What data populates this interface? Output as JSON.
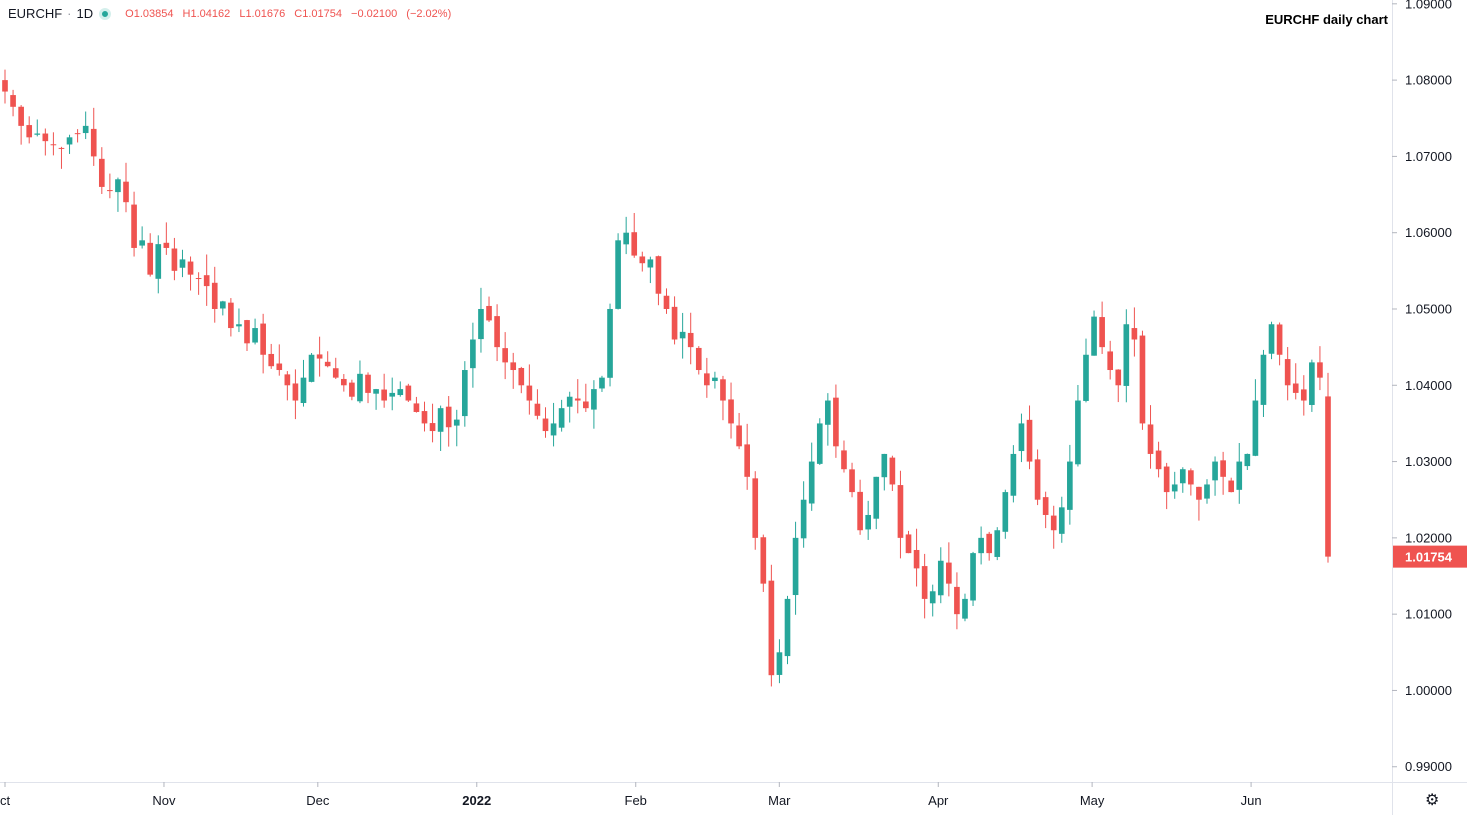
{
  "header": {
    "symbol": "EURCHF",
    "interval": "1D",
    "open_label": "O",
    "open": "1.03854",
    "high_label": "H",
    "high": "1.04162",
    "low_label": "L",
    "low": "1.01676",
    "close_label": "C",
    "close": "1.01754",
    "change": "−0.02100",
    "change_pct": "(−2.02%)",
    "status_color": "#26a69a"
  },
  "title": "EURCHF daily chart",
  "last_price": "1.01754",
  "colors": {
    "up": "#26a69a",
    "down": "#ef5350",
    "axis": "#131722",
    "border": "#e0e3eb"
  },
  "settings_icon": "gear-icon",
  "chart_data": {
    "type": "candlestick",
    "title": "EURCHF daily chart",
    "ylim": [
      0.988,
      1.0905
    ],
    "y_ticks": [
      "1.09000",
      "1.08000",
      "1.07000",
      "1.06000",
      "1.05000",
      "1.04000",
      "1.03000",
      "1.02000",
      "1.01000",
      "1.00000",
      "0.99000"
    ],
    "x_ticks": [
      {
        "label": "ct",
        "date": "2021-10-01",
        "bold": false
      },
      {
        "label": "Nov",
        "date": "2021-11-01",
        "bold": false
      },
      {
        "label": "Dec",
        "date": "2021-12-01",
        "bold": false
      },
      {
        "label": "2022",
        "date": "2022-01-01",
        "bold": true
      },
      {
        "label": "Feb",
        "date": "2022-02-01",
        "bold": false
      },
      {
        "label": "Mar",
        "date": "2022-03-01",
        "bold": false
      },
      {
        "label": "Apr",
        "date": "2022-04-01",
        "bold": false
      },
      {
        "label": "May",
        "date": "2022-05-01",
        "bold": false
      },
      {
        "label": "Jun",
        "date": "2022-06-01",
        "bold": false
      }
    ],
    "x_start": "2021-10-01",
    "x_end": "2022-06-16",
    "closes": [
      1.0785,
      1.0765,
      1.074,
      1.0725,
      1.073,
      1.072,
      1.0715,
      1.071,
      1.0725,
      1.073,
      1.074,
      1.07,
      1.066,
      1.0655,
      1.067,
      1.064,
      1.058,
      1.059,
      1.0545,
      1.0585,
      1.058,
      1.055,
      1.0565,
      1.0545,
      1.054,
      1.053,
      1.05,
      1.051,
      1.0475,
      1.048,
      1.0455,
      1.0475,
      1.044,
      1.0425,
      1.042,
      1.04,
      1.038,
      1.041,
      1.044,
      1.0435,
      1.0425,
      1.041,
      1.04,
      1.0385,
      1.0415,
      1.039,
      1.0395,
      1.038,
      1.039,
      1.0395,
      1.038,
      1.0365,
      1.035,
      1.034,
      1.037,
      1.0345,
      1.0355,
      1.042,
      1.046,
      1.05,
      1.0485,
      1.045,
      1.043,
      1.042,
      1.04,
      1.038,
      1.036,
      1.034,
      1.035,
      1.037,
      1.0385,
      1.038,
      1.037,
      1.0395,
      1.041,
      1.05,
      1.059,
      1.06,
      1.057,
      1.056,
      1.0565,
      1.052,
      1.05,
      1.046,
      1.047,
      1.045,
      1.042,
      1.04,
      1.041,
      1.038,
      1.035,
      1.032,
      1.028,
      1.02,
      1.014,
      1.002,
      1.005,
      1.012,
      1.02,
      1.025,
      1.03,
      1.035,
      1.038,
      1.032,
      1.029,
      1.026,
      1.021,
      1.023,
      1.028,
      1.031,
      1.027,
      1.02,
      1.018,
      1.016,
      1.012,
      1.013,
      1.017,
      1.014,
      1.01,
      1.012,
      1.018,
      1.02,
      1.018,
      1.021,
      1.026,
      1.031,
      1.035,
      1.03,
      1.025,
      1.023,
      1.021,
      1.024,
      1.03,
      1.038,
      1.044,
      1.049,
      1.045,
      1.042,
      1.04,
      1.048,
      1.046,
      1.035,
      1.031,
      1.029,
      1.026,
      1.027,
      1.029,
      1.027,
      1.025,
      1.027,
      1.03,
      1.028,
      1.026,
      1.03,
      1.031,
      1.038,
      1.044,
      1.048,
      1.044,
      1.04,
      1.039,
      1.038,
      1.043,
      1.041,
      1.01754
    ]
  }
}
